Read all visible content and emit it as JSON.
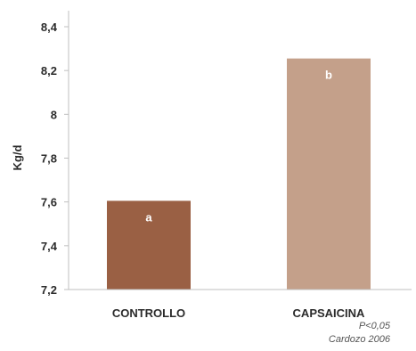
{
  "chart_data": {
    "type": "bar",
    "categories": [
      "CONTROLLO",
      "CAPSAICINA"
    ],
    "values": [
      7.605,
      8.255
    ],
    "data_labels": [
      "a",
      "b"
    ],
    "colors": [
      "#9a6044",
      "#c4a08a"
    ],
    "ylabel": "Kg/d",
    "ylim": [
      7.2,
      8.4
    ],
    "yticks": [
      "7,2",
      "7,4",
      "7,6",
      "7,8",
      "8",
      "8,2",
      "8,4"
    ],
    "ytick_values": [
      7.2,
      7.4,
      7.6,
      7.8,
      8.0,
      8.2,
      8.4
    ],
    "grid": false,
    "legend": "none"
  },
  "notes": {
    "significance": "P<0,05",
    "source": "Cardozo 2006"
  }
}
